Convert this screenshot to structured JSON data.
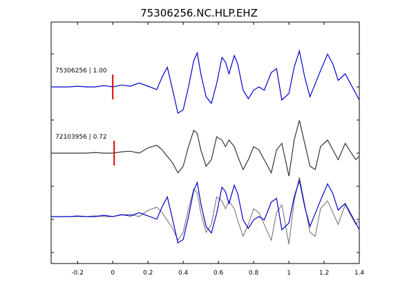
{
  "chart_data": {
    "type": "line",
    "title": "75306256.NC.HLP.EHZ",
    "xlabel": "",
    "ylabel": "",
    "xlim": [
      -0.35,
      1.4
    ],
    "xticks": [
      -0.2,
      0,
      0.2,
      0.4,
      0.6,
      0.8,
      1,
      1.2,
      1.4
    ],
    "xtick_labels": [
      "-0.2",
      "0",
      "0.2",
      "0.4",
      "0.6",
      "0.8",
      "1",
      "1.2",
      "1.4"
    ],
    "ylim": [
      -1.2,
      1.2
    ],
    "grid": false,
    "pick_time": 0,
    "traces": [
      {
        "label": "75306256 | 1.00",
        "color": "#0000cc",
        "offset": 0.0,
        "time": [
          -0.35,
          -0.3,
          -0.25,
          -0.2,
          -0.15,
          -0.1,
          -0.05,
          0.0,
          0.05,
          0.1,
          0.15,
          0.2,
          0.25,
          0.28,
          0.31,
          0.34,
          0.37,
          0.4,
          0.43,
          0.46,
          0.48,
          0.5,
          0.53,
          0.56,
          0.59,
          0.62,
          0.64,
          0.66,
          0.69,
          0.71,
          0.74,
          0.77,
          0.8,
          0.83,
          0.86,
          0.9,
          0.93,
          0.96,
          1.0,
          1.03,
          1.06,
          1.09,
          1.12,
          1.15,
          1.18,
          1.22,
          1.25,
          1.28,
          1.32,
          1.35,
          1.38,
          1.4
        ],
        "values": [
          0.0,
          0.0,
          0.0,
          0.01,
          0.0,
          0.0,
          0.02,
          0.0,
          0.03,
          0.01,
          0.06,
          0.01,
          -0.04,
          0.15,
          0.3,
          -0.05,
          -0.4,
          -0.35,
          0.0,
          0.4,
          0.52,
          0.2,
          -0.15,
          -0.25,
          0.05,
          0.45,
          0.38,
          0.2,
          0.48,
          0.35,
          -0.05,
          -0.18,
          -0.05,
          0.0,
          -0.05,
          0.22,
          0.28,
          -0.2,
          -0.1,
          0.3,
          0.55,
          0.15,
          -0.15,
          0.05,
          0.25,
          0.5,
          0.35,
          0.1,
          0.2,
          0.05,
          -0.1,
          -0.2
        ]
      },
      {
        "label": "72103956 | 0.72",
        "color": "#333333",
        "offset": 0.0,
        "time": [
          -0.35,
          -0.3,
          -0.25,
          -0.2,
          -0.15,
          -0.1,
          -0.05,
          0.0,
          0.05,
          0.1,
          0.15,
          0.2,
          0.25,
          0.28,
          0.31,
          0.34,
          0.37,
          0.4,
          0.43,
          0.46,
          0.48,
          0.5,
          0.53,
          0.56,
          0.59,
          0.62,
          0.64,
          0.66,
          0.69,
          0.71,
          0.74,
          0.77,
          0.8,
          0.83,
          0.86,
          0.9,
          0.93,
          0.96,
          1.0,
          1.03,
          1.06,
          1.09,
          1.12,
          1.15,
          1.18,
          1.22,
          1.25,
          1.28,
          1.32,
          1.35,
          1.38,
          1.4
        ],
        "values": [
          0.0,
          0.0,
          0.0,
          0.0,
          0.0,
          0.01,
          0.0,
          0.0,
          0.02,
          0.03,
          0.0,
          0.08,
          0.12,
          0.05,
          -0.05,
          -0.15,
          -0.3,
          -0.2,
          0.1,
          0.35,
          0.3,
          0.05,
          -0.2,
          -0.1,
          0.25,
          0.2,
          0.1,
          0.2,
          0.1,
          -0.05,
          -0.25,
          -0.1,
          0.1,
          0.05,
          -0.1,
          -0.3,
          0.05,
          0.15,
          -0.35,
          0.2,
          0.5,
          0.15,
          -0.2,
          -0.25,
          0.1,
          0.2,
          0.05,
          -0.1,
          0.15,
          0.02,
          -0.1,
          -0.05
        ]
      }
    ]
  }
}
